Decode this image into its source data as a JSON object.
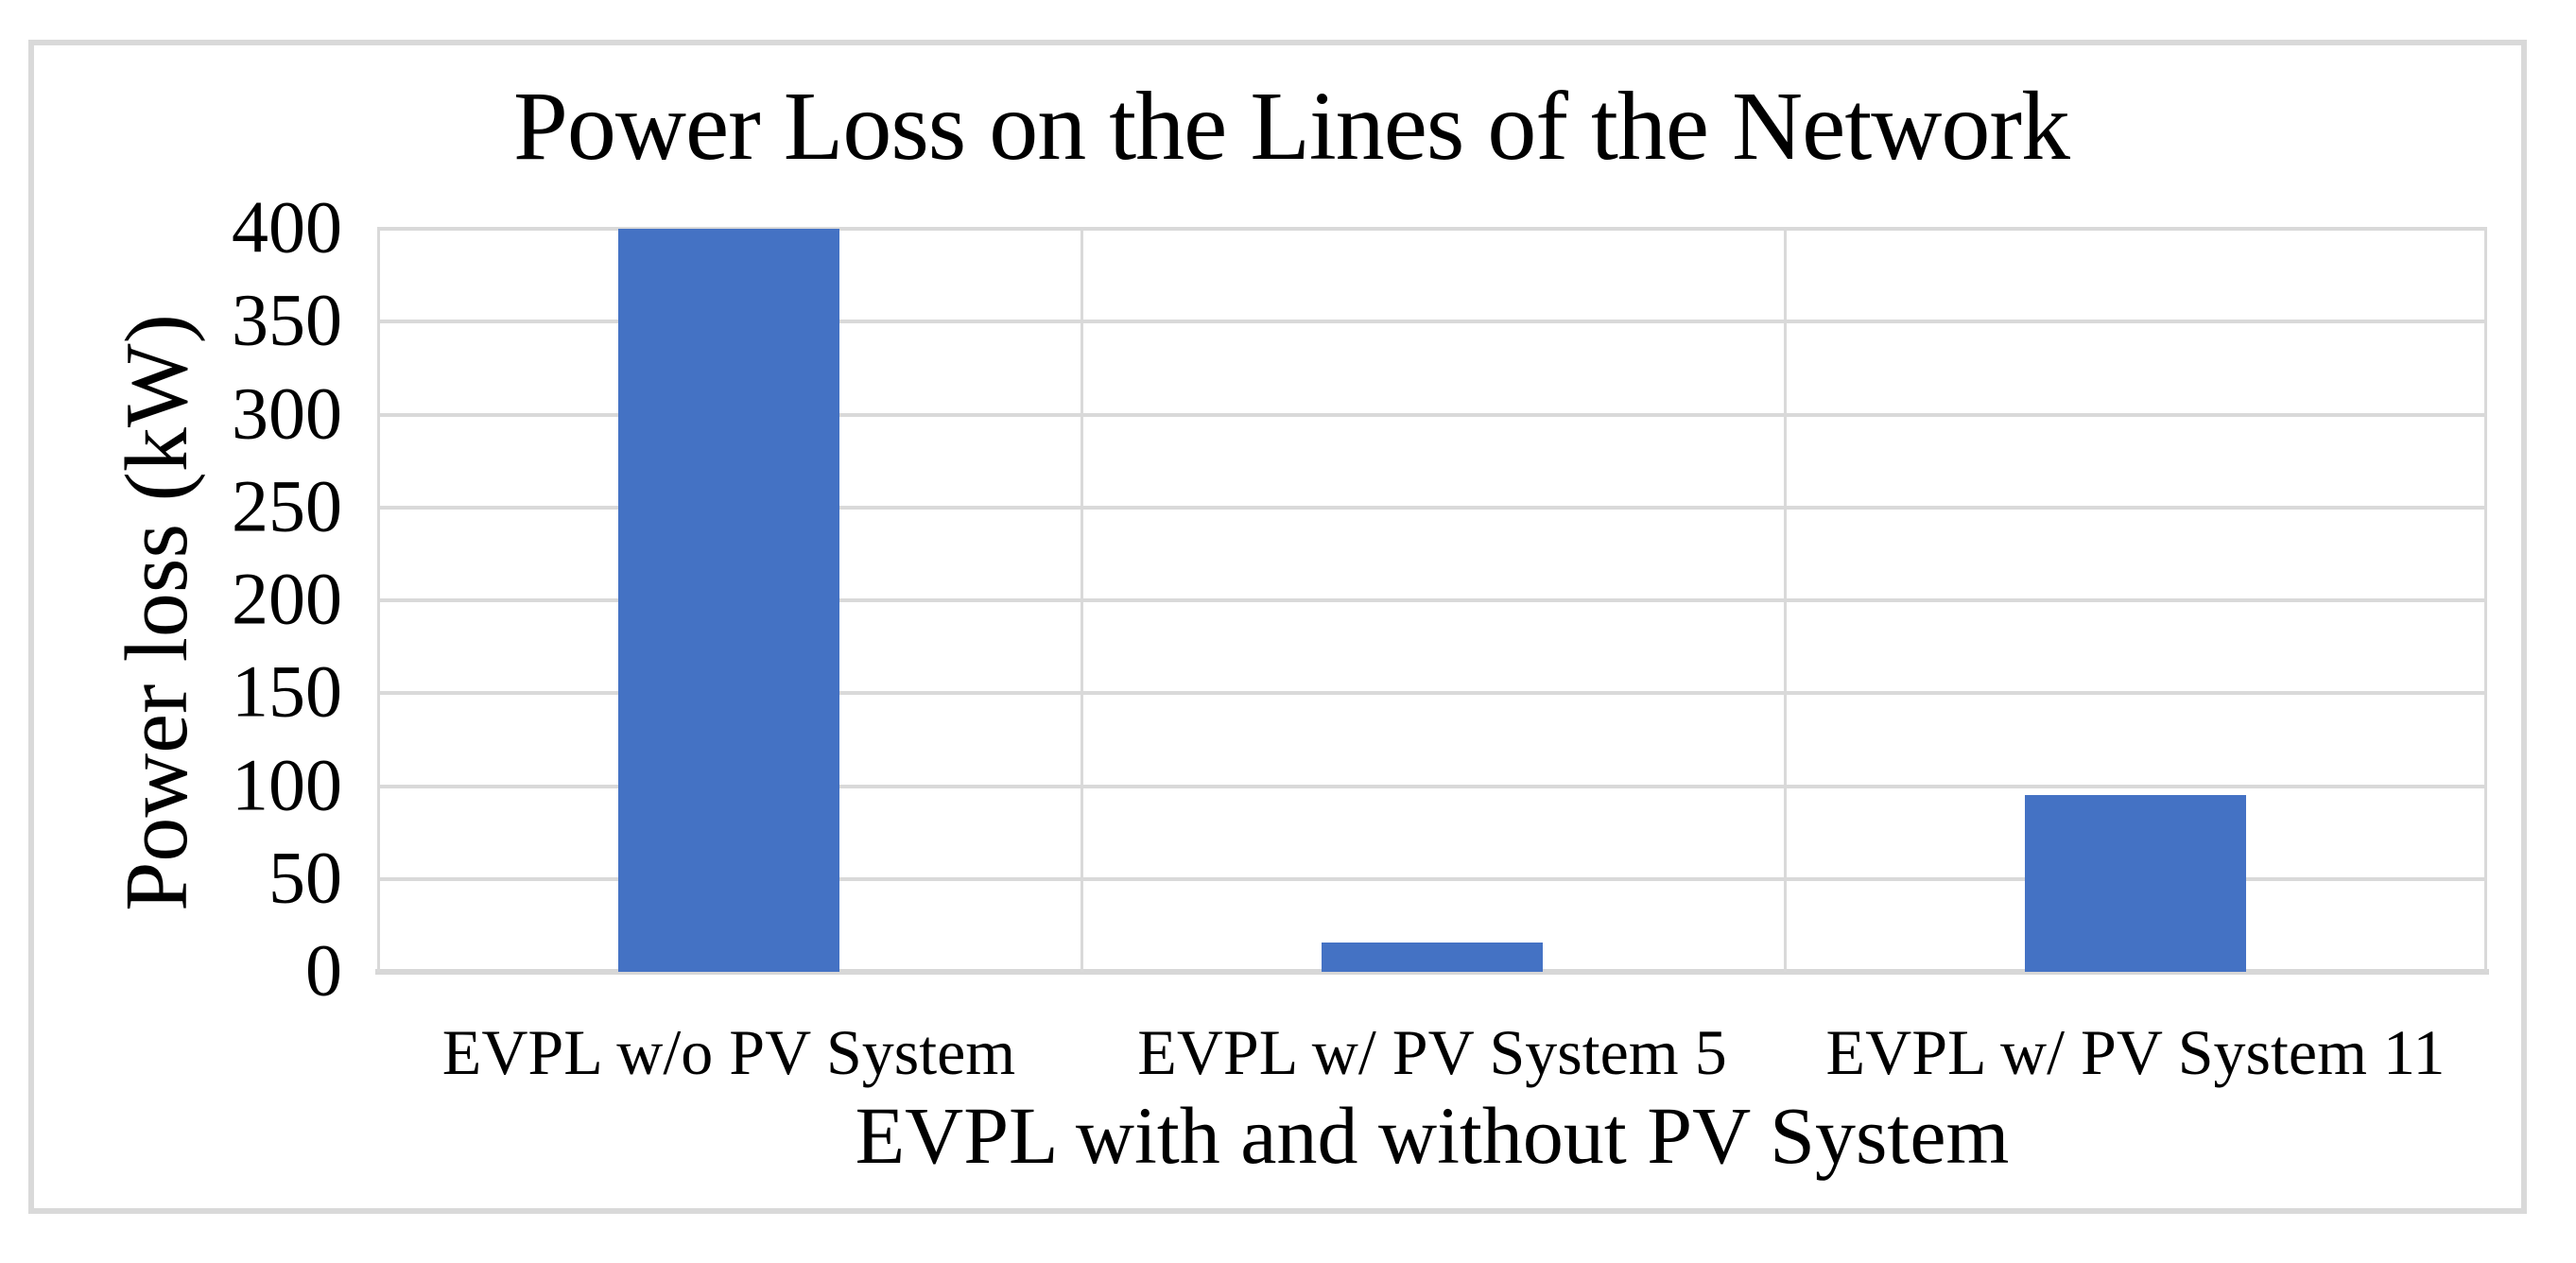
{
  "chart_data": {
    "type": "bar",
    "title": "Power Loss on the Lines of the Network",
    "xlabel": "EVPL with and without PV System",
    "ylabel": "Power loss (kW)",
    "categories": [
      "EVPL w/o PV System",
      "EVPL w/ PV System 5",
      "EVPL w/ PV System 11"
    ],
    "values": [
      400,
      16,
      95
    ],
    "ylim": [
      0,
      400
    ],
    "yticks": [
      0,
      50,
      100,
      150,
      200,
      250,
      300,
      350,
      400
    ],
    "grid": "horizontal gridlines at each ytick; vertical gridlines at category boundaries",
    "legend_position": "none",
    "colors": {
      "bar": "#4472c4",
      "gridline": "#d9d9d9",
      "axis_line": "#d7d7d7",
      "frame_border": "#d9d9d9",
      "text": "#000000",
      "background": "#ffffff"
    }
  }
}
